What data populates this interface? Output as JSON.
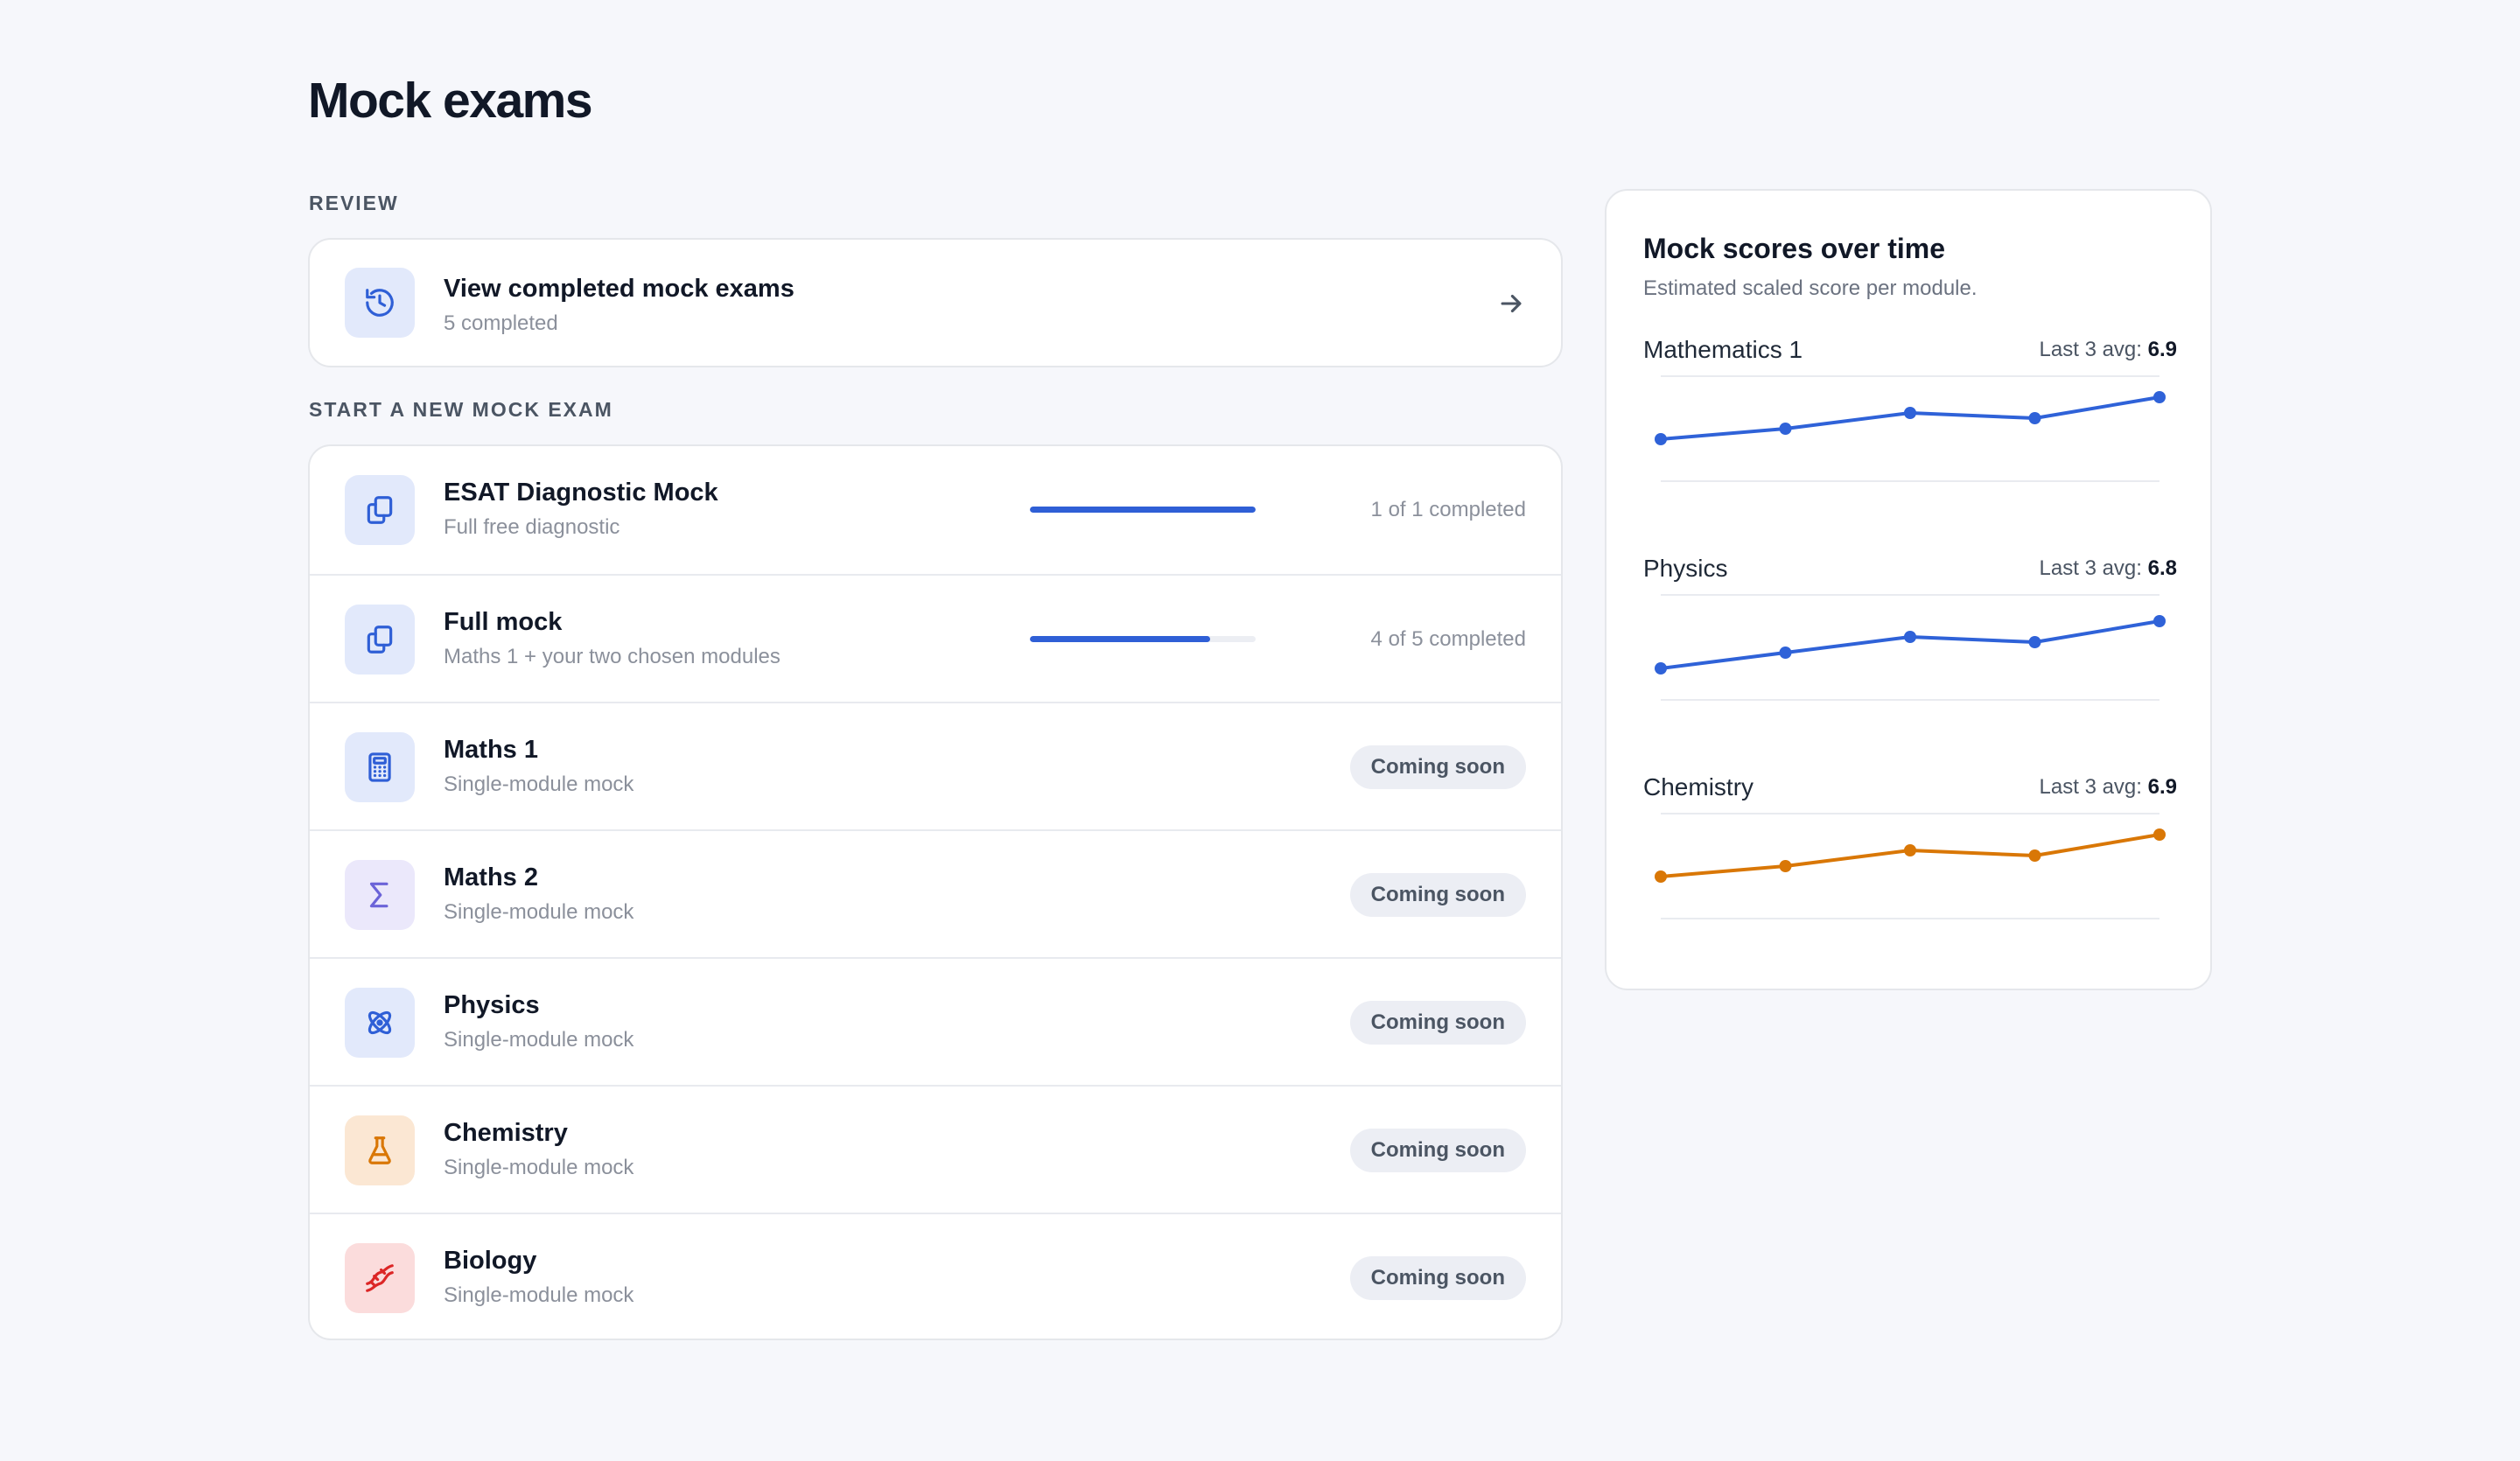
{
  "page": {
    "title": "Mock exams"
  },
  "review": {
    "section_label": "REVIEW",
    "card": {
      "title": "View completed mock exams",
      "subtitle": "5 completed",
      "icon": "history-icon"
    }
  },
  "start": {
    "section_label": "START A NEW MOCK EXAM",
    "items": [
      {
        "title": "ESAT Diagnostic Mock",
        "subtitle": "Full free diagnostic",
        "icon": "copy-icon",
        "icon_color": "blue",
        "type": "progress",
        "progress": 1.0,
        "progress_text": "1 of 1 completed"
      },
      {
        "title": "Full mock",
        "subtitle": "Maths 1 + your two chosen modules",
        "icon": "copy-icon",
        "icon_color": "blue",
        "type": "progress",
        "progress": 0.8,
        "progress_text": "4 of 5 completed"
      },
      {
        "title": "Maths 1",
        "subtitle": "Single-module mock",
        "icon": "calculator-icon",
        "icon_color": "blue",
        "type": "badge",
        "badge": "Coming soon"
      },
      {
        "title": "Maths 2",
        "subtitle": "Single-module mock",
        "icon": "sigma-icon",
        "icon_color": "violet",
        "type": "badge",
        "badge": "Coming soon"
      },
      {
        "title": "Physics",
        "subtitle": "Single-module mock",
        "icon": "atom-icon",
        "icon_color": "blue",
        "type": "badge",
        "badge": "Coming soon"
      },
      {
        "title": "Chemistry",
        "subtitle": "Single-module mock",
        "icon": "flask-icon",
        "icon_color": "orange",
        "type": "badge",
        "badge": "Coming soon"
      },
      {
        "title": "Biology",
        "subtitle": "Single-module mock",
        "icon": "dna-icon",
        "icon_color": "red",
        "type": "badge",
        "badge": "Coming soon"
      }
    ]
  },
  "scores": {
    "title": "Mock scores over time",
    "subtitle": "Estimated scaled score per module.",
    "avg_label": "Last 3 avg:"
  },
  "chart_data": [
    {
      "type": "line",
      "name": "Mathematics 1",
      "x": [
        1,
        2,
        3,
        4,
        5
      ],
      "values": [
        6.3,
        6.5,
        6.8,
        6.7,
        7.1
      ],
      "avg": "6.9",
      "color": "#2f62d8",
      "ylim": [
        5.5,
        7.5
      ]
    },
    {
      "type": "line",
      "name": "Physics",
      "x": [
        1,
        2,
        3,
        4,
        5
      ],
      "values": [
        6.1,
        6.4,
        6.7,
        6.6,
        7.0
      ],
      "avg": "6.8",
      "color": "#2f62d8",
      "ylim": [
        5.5,
        7.5
      ]
    },
    {
      "type": "line",
      "name": "Chemistry",
      "x": [
        1,
        2,
        3,
        4,
        5
      ],
      "values": [
        6.3,
        6.5,
        6.8,
        6.7,
        7.1
      ],
      "avg": "6.9",
      "color": "#d97706",
      "ylim": [
        5.5,
        7.5
      ]
    }
  ]
}
